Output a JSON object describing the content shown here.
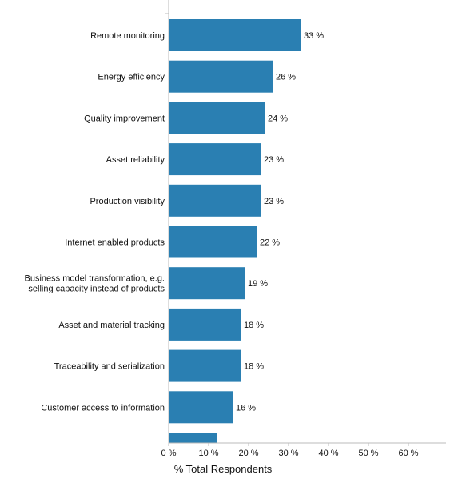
{
  "chart_data": {
    "type": "bar",
    "orientation": "horizontal",
    "categories": [
      "Remote monitoring",
      "Energy efficiency",
      "Quality improvement",
      "Asset reliability",
      "Production visibility",
      "Internet enabled products",
      "Business model transformation, e.g. selling capacity instead of products",
      "Asset and material tracking",
      "Traceability and serialization",
      "Customer access to information",
      ""
    ],
    "category_lines": [
      [
        "Remote monitoring"
      ],
      [
        "Energy efficiency"
      ],
      [
        "Quality improvement"
      ],
      [
        "Asset reliability"
      ],
      [
        "Production visibility"
      ],
      [
        "Internet enabled products"
      ],
      [
        "Business model transformation, e.g.",
        "selling capacity instead of products"
      ],
      [
        "Asset and material tracking"
      ],
      [
        "Traceability and serialization"
      ],
      [
        "Customer access to information"
      ],
      [
        ""
      ]
    ],
    "values": [
      33,
      26,
      24,
      23,
      23,
      22,
      19,
      18,
      18,
      16,
      12
    ],
    "value_labels": [
      "33 %",
      "26 %",
      "24 %",
      "23 %",
      "23 %",
      "22 %",
      "19 %",
      "18 %",
      "18 %",
      "16 %",
      ""
    ],
    "xlabel": "% Total Respondents",
    "xlim": [
      0,
      69
    ],
    "xticks": [
      0,
      10,
      20,
      30,
      40,
      50,
      60
    ],
    "xtick_labels": [
      "0 %",
      "10 %",
      "20 %",
      "30 %",
      "40 %",
      "50 %",
      "60 %"
    ],
    "grid": false,
    "legend": "none",
    "colors": {
      "bar": "#2a7fb2",
      "axis": "#bbbbbb",
      "text": "#111111"
    }
  }
}
